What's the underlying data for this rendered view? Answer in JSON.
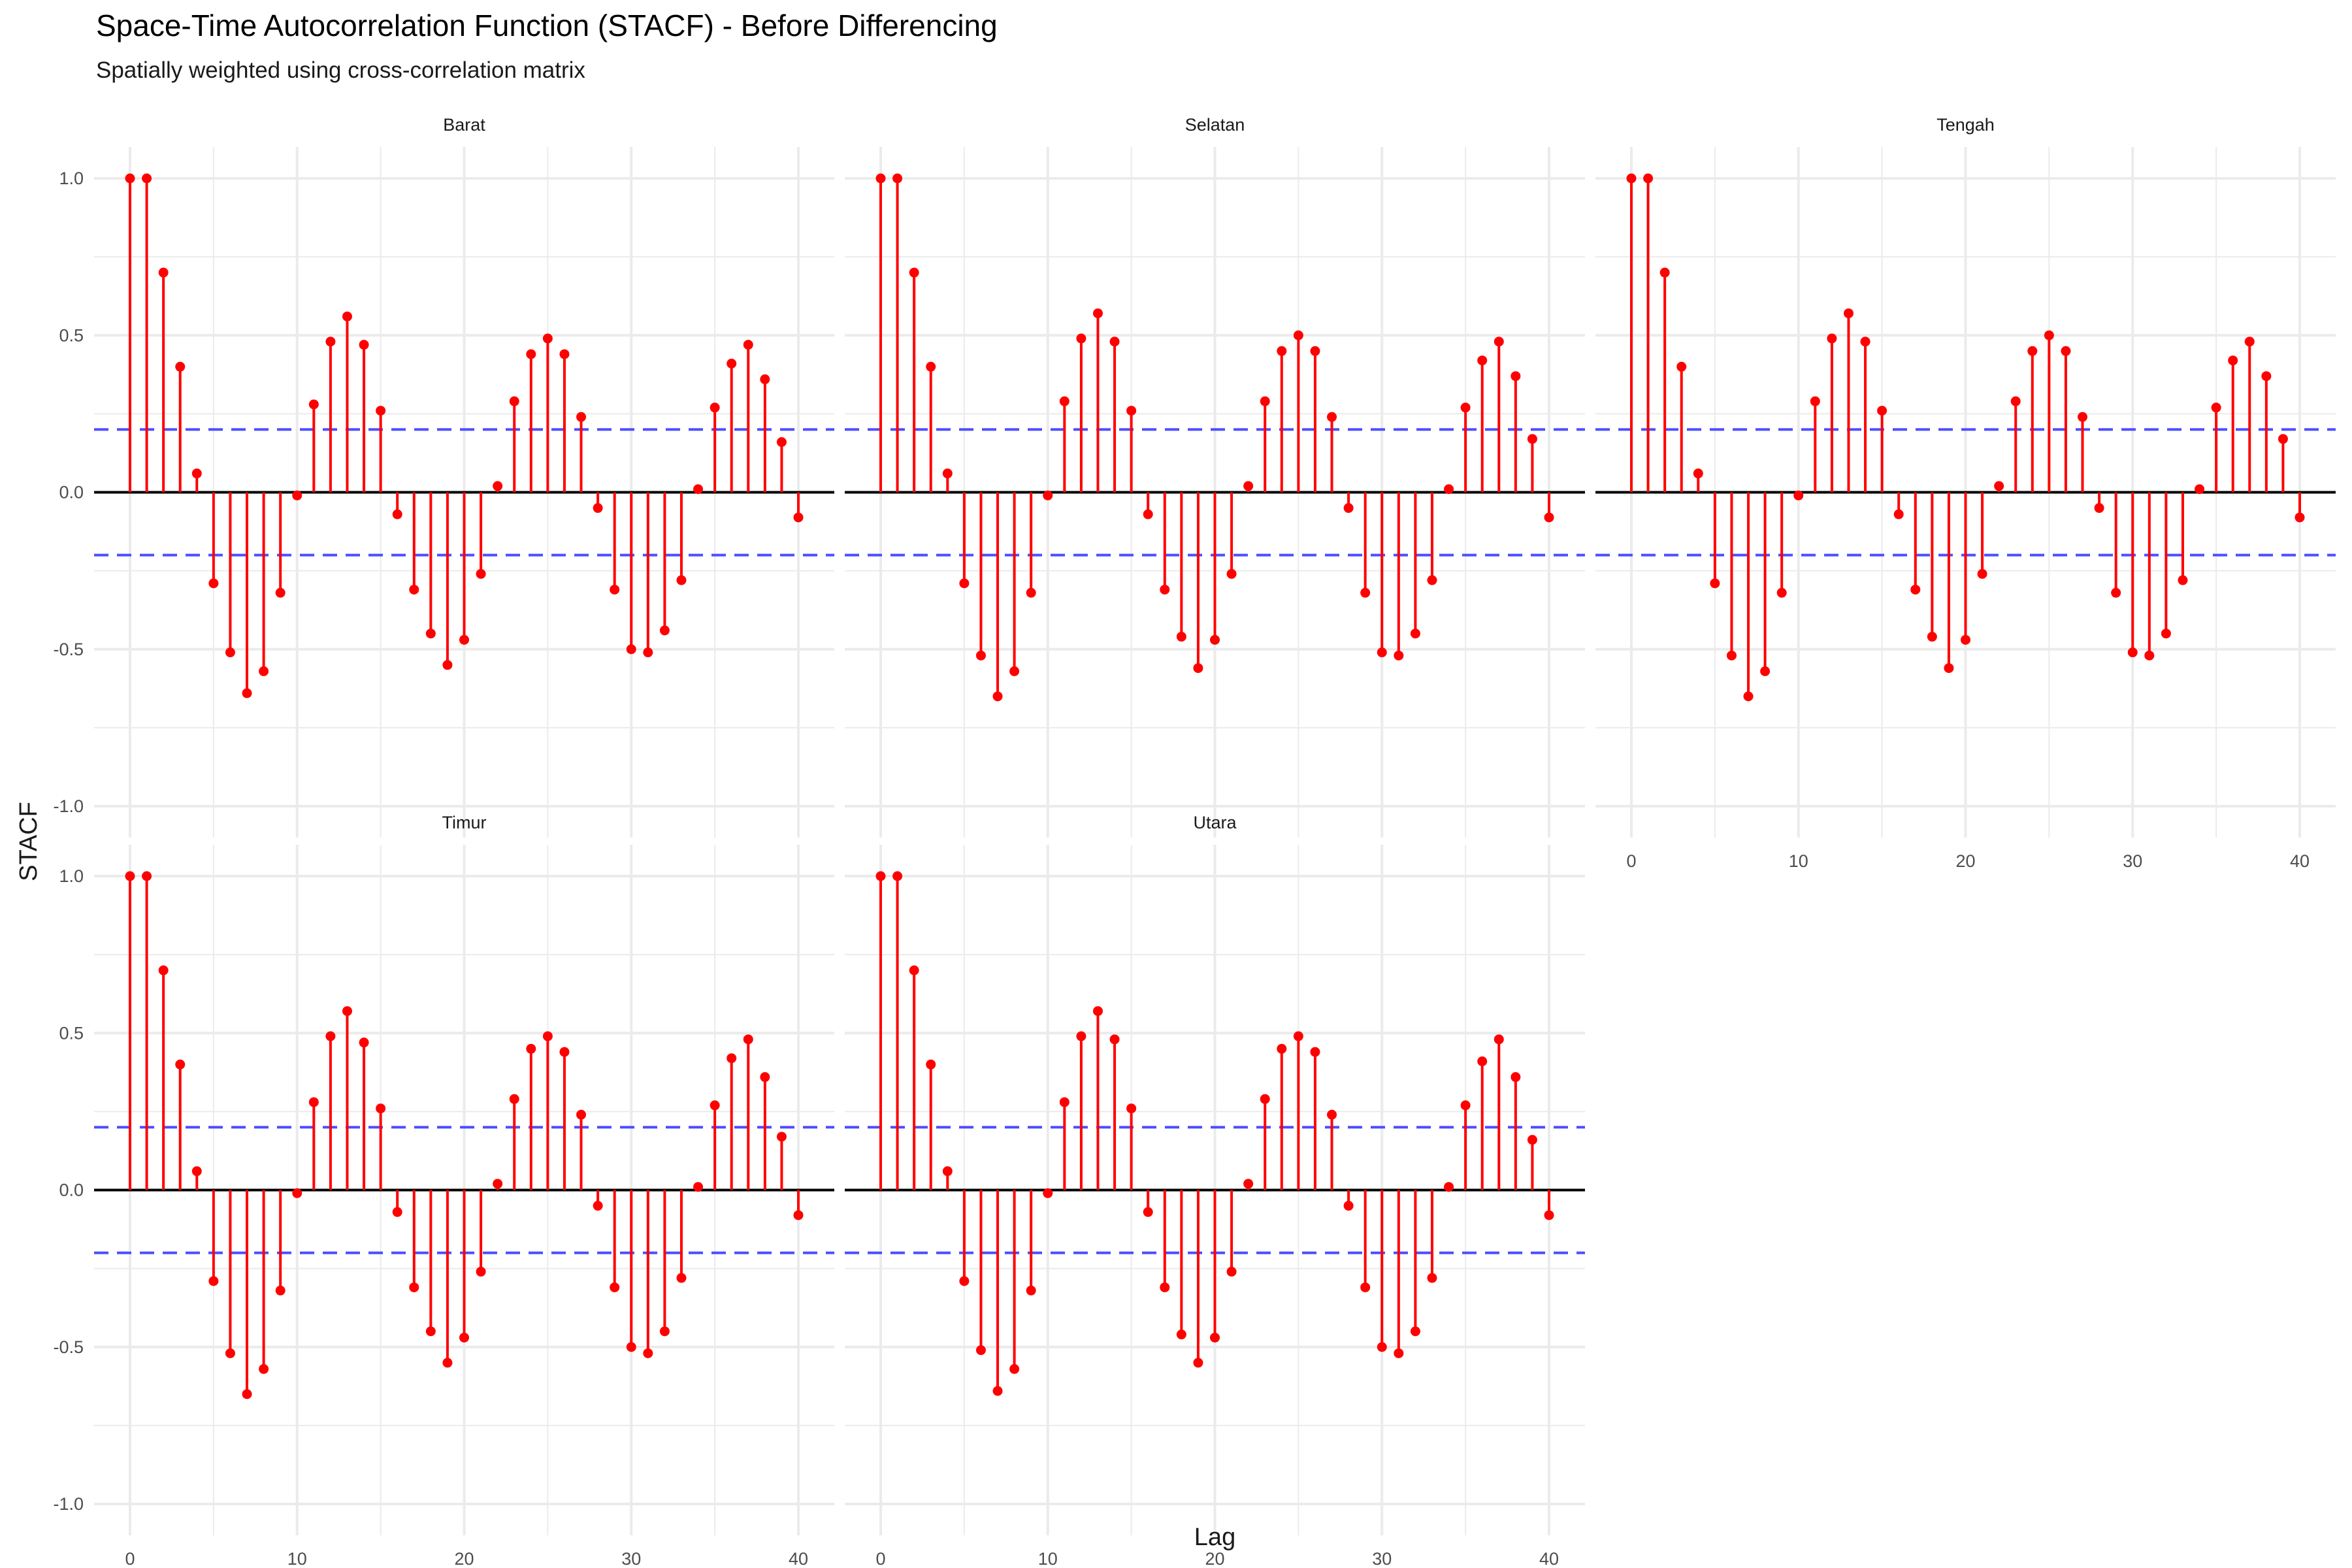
{
  "title": "Space-Time Autocorrelation Function (STACF) - Before Differencing",
  "subtitle": "Spatially weighted using cross-correlation matrix",
  "chart_data": {
    "type": "stem",
    "title": "Space-Time Autocorrelation Function (STACF) - Before Differencing",
    "subtitle": "Spatially weighted using cross-correlation matrix",
    "xlabel": "Lag",
    "ylabel": "STACF",
    "xlim": [
      0,
      40
    ],
    "ylim": [
      -1.0,
      1.0
    ],
    "x_ticks": [
      0,
      10,
      20,
      30,
      40
    ],
    "y_ticks": [
      1.0,
      0.5,
      0.0,
      -0.5,
      -1.0
    ],
    "y_tick_labels": [
      "1.0",
      "0.5",
      "0.0",
      "-0.5",
      "-1.0"
    ],
    "x_tick_labels": [
      "0",
      "10",
      "20",
      "30",
      "40"
    ],
    "confidence_bounds": [
      0.2,
      -0.2
    ],
    "grid": true,
    "colors": {
      "stem": "#ff0000",
      "bound": "#4d4dff",
      "zero_line": "#000000",
      "grid": "#ebebeb"
    },
    "lags": [
      0,
      1,
      2,
      3,
      4,
      5,
      6,
      7,
      8,
      9,
      10,
      11,
      12,
      13,
      14,
      15,
      16,
      17,
      18,
      19,
      20,
      21,
      22,
      23,
      24,
      25,
      26,
      27,
      28,
      29,
      30,
      31,
      32,
      33,
      34,
      35,
      36,
      37,
      38,
      39,
      40
    ],
    "panels": [
      {
        "name": "Barat",
        "values": [
          1.0,
          1.0,
          0.7,
          0.4,
          0.06,
          -0.29,
          -0.51,
          -0.64,
          -0.57,
          -0.32,
          -0.01,
          0.28,
          0.48,
          0.56,
          0.47,
          0.26,
          -0.07,
          -0.31,
          -0.45,
          -0.55,
          -0.47,
          -0.26,
          0.02,
          0.29,
          0.44,
          0.49,
          0.44,
          0.24,
          -0.05,
          -0.31,
          -0.5,
          -0.51,
          -0.44,
          -0.28,
          0.01,
          0.27,
          0.41,
          0.47,
          0.36,
          0.16,
          -0.08
        ]
      },
      {
        "name": "Selatan",
        "values": [
          1.0,
          1.0,
          0.7,
          0.4,
          0.06,
          -0.29,
          -0.52,
          -0.65,
          -0.57,
          -0.32,
          -0.01,
          0.29,
          0.49,
          0.57,
          0.48,
          0.26,
          -0.07,
          -0.31,
          -0.46,
          -0.56,
          -0.47,
          -0.26,
          0.02,
          0.29,
          0.45,
          0.5,
          0.45,
          0.24,
          -0.05,
          -0.32,
          -0.51,
          -0.52,
          -0.45,
          -0.28,
          0.01,
          0.27,
          0.42,
          0.48,
          0.37,
          0.17,
          -0.08
        ]
      },
      {
        "name": "Tengah",
        "values": [
          1.0,
          1.0,
          0.7,
          0.4,
          0.06,
          -0.29,
          -0.52,
          -0.65,
          -0.57,
          -0.32,
          -0.01,
          0.29,
          0.49,
          0.57,
          0.48,
          0.26,
          -0.07,
          -0.31,
          -0.46,
          -0.56,
          -0.47,
          -0.26,
          0.02,
          0.29,
          0.45,
          0.5,
          0.45,
          0.24,
          -0.05,
          -0.32,
          -0.51,
          -0.52,
          -0.45,
          -0.28,
          0.01,
          0.27,
          0.42,
          0.48,
          0.37,
          0.17,
          -0.08
        ]
      },
      {
        "name": "Timur",
        "values": [
          1.0,
          1.0,
          0.7,
          0.4,
          0.06,
          -0.29,
          -0.52,
          -0.65,
          -0.57,
          -0.32,
          -0.01,
          0.28,
          0.49,
          0.57,
          0.47,
          0.26,
          -0.07,
          -0.31,
          -0.45,
          -0.55,
          -0.47,
          -0.26,
          0.02,
          0.29,
          0.45,
          0.49,
          0.44,
          0.24,
          -0.05,
          -0.31,
          -0.5,
          -0.52,
          -0.45,
          -0.28,
          0.01,
          0.27,
          0.42,
          0.48,
          0.36,
          0.17,
          -0.08
        ]
      },
      {
        "name": "Utara",
        "values": [
          1.0,
          1.0,
          0.7,
          0.4,
          0.06,
          -0.29,
          -0.51,
          -0.64,
          -0.57,
          -0.32,
          -0.01,
          0.28,
          0.49,
          0.57,
          0.48,
          0.26,
          -0.07,
          -0.31,
          -0.46,
          -0.55,
          -0.47,
          -0.26,
          0.02,
          0.29,
          0.45,
          0.49,
          0.44,
          0.24,
          -0.05,
          -0.31,
          -0.5,
          -0.52,
          -0.45,
          -0.28,
          0.01,
          0.27,
          0.41,
          0.48,
          0.36,
          0.16,
          -0.08
        ]
      }
    ]
  }
}
